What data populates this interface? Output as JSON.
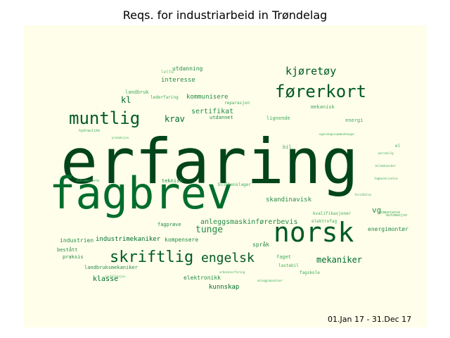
{
  "title": "Reqs. for industriarbeid in Trøndelag",
  "date_range": "01.Jan 17 - 31.Dec 17",
  "colors": {
    "background": "#ffffff",
    "cloud_background": "#fefeea",
    "palette": [
      "#00441b",
      "#005a24",
      "#006d2c",
      "#238b45",
      "#41ab5d",
      "#74c476"
    ]
  },
  "words": [
    {
      "text": "erfaring",
      "weight": 100
    },
    {
      "text": "fagbrev",
      "weight": 70
    },
    {
      "text": "norsk",
      "weight": 38
    },
    {
      "text": "førerkort",
      "weight": 26
    },
    {
      "text": "muntlig",
      "weight": 24
    },
    {
      "text": "skriftlig",
      "weight": 22
    },
    {
      "text": "engelsk",
      "weight": 18
    },
    {
      "text": "kjøretøy",
      "weight": 14
    },
    {
      "text": "tunge",
      "weight": 12
    },
    {
      "text": "mekaniker",
      "weight": 12
    },
    {
      "text": "krav",
      "weight": 11
    },
    {
      "text": "kl",
      "weight": 11
    },
    {
      "text": "vg",
      "weight": 10
    },
    {
      "text": "sertifikat",
      "weight": 9
    },
    {
      "text": "anleggsmaskinførerbevis",
      "weight": 9
    },
    {
      "text": "klasse",
      "weight": 9
    },
    {
      "text": "kunnskap",
      "weight": 8
    },
    {
      "text": "industrimekaniker",
      "weight": 8
    },
    {
      "text": "skandinavisk",
      "weight": 8
    },
    {
      "text": "kommunisere",
      "weight": 8
    },
    {
      "text": "interesse",
      "weight": 8
    },
    {
      "text": "utdanning",
      "weight": 8
    },
    {
      "text": "kompensere",
      "weight": 7
    },
    {
      "text": "elektronikk",
      "weight": 7
    },
    {
      "text": "industrien",
      "weight": 7
    },
    {
      "text": "energimontør",
      "weight": 7
    },
    {
      "text": "språk",
      "weight": 7
    },
    {
      "text": "utdannet",
      "weight": 7
    },
    {
      "text": "teknisk",
      "weight": 7
    },
    {
      "text": "landbruksmekaniker",
      "weight": 6
    },
    {
      "text": "bestått",
      "weight": 6
    },
    {
      "text": "praksis",
      "weight": 6
    },
    {
      "text": "fagprøve",
      "weight": 6
    },
    {
      "text": "lignende",
      "weight": 6
    },
    {
      "text": "reparasjon",
      "weight": 6
    },
    {
      "text": "mekanisk",
      "weight": 6
    },
    {
      "text": "landbruk",
      "weight": 6
    },
    {
      "text": "lederfaring",
      "weight": 5
    },
    {
      "text": "faget",
      "weight": 5
    },
    {
      "text": "energi",
      "weight": 5
    },
    {
      "text": "bil",
      "weight": 5
    },
    {
      "text": "kvalifikasjoner",
      "weight": 5
    },
    {
      "text": "elektrofag",
      "weight": 5
    },
    {
      "text": "lastebil",
      "weight": 5
    },
    {
      "text": "fagskole",
      "weight": 5
    },
    {
      "text": "el",
      "weight": 5
    },
    {
      "text": "lette",
      "weight": 4
    },
    {
      "text": "blikkenslager",
      "weight": 4
    },
    {
      "text": "automasjon",
      "weight": 4
    },
    {
      "text": "kompetanse",
      "weight": 4
    },
    {
      "text": "hydraulikk",
      "weight": 3
    },
    {
      "text": "dokumentere",
      "weight": 3
    },
    {
      "text": "egenskapssammenhenger",
      "weight": 3
    },
    {
      "text": "personlig",
      "weight": 3
    },
    {
      "text": "bilmekaniker",
      "weight": 3
    },
    {
      "text": "fagbeskrivelse",
      "weight": 3
    },
    {
      "text": "produksjon",
      "weight": 3
    },
    {
      "text": "forståelse",
      "weight": 3
    },
    {
      "text": "installasjon",
      "weight": 3
    },
    {
      "text": "anleggsmaskiner",
      "weight": 3
    },
    {
      "text": "arbeidserfaring",
      "weight": 3
    }
  ]
}
